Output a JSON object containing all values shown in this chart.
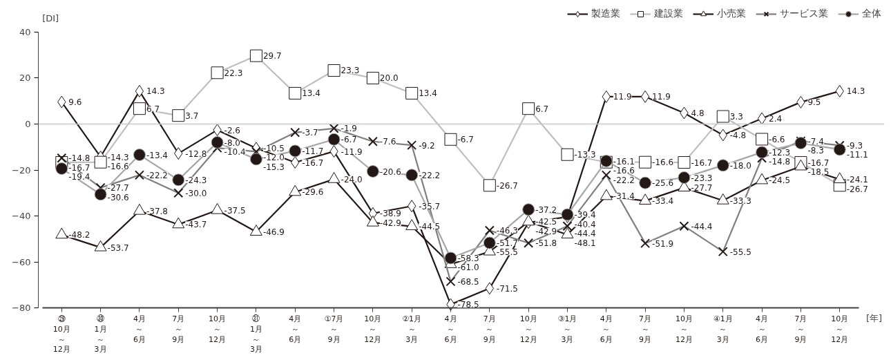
{
  "chart_data": {
    "type": "line",
    "ylabel": "[DI]",
    "xlabel": "[年]",
    "categories": [
      "㉙10月～12月",
      "㉚1月～3月",
      "4月～6月",
      "7月～9月",
      "10月～12月",
      "㉛1月～3月",
      "4月～6月",
      "①7月～9月",
      "10月～12月",
      "②1月～3月",
      "4月～6月",
      "7月～9月",
      "10月～12月",
      "③1月～3月",
      "4月～6月",
      "7月～9月",
      "10月～12月",
      "④1月～3月",
      "4月～6月",
      "7月～9月",
      "10月～12月"
    ],
    "series": [
      {
        "name": "製造業",
        "color": "#231815",
        "marker": "diamond",
        "values": [
          9.6,
          -14.3,
          14.3,
          -12.8,
          -2.6,
          -10.5,
          -16.7,
          -11.9,
          -38.9,
          -35.7,
          -78.5,
          -71.5,
          -42.9,
          -40.4,
          11.9,
          11.9,
          4.8,
          -4.8,
          2.4,
          9.5,
          14.3
        ],
        "value_labels": [
          "9.6",
          "-14.3",
          "14.3",
          "-12.8",
          "-2.6",
          "-10.5",
          "-16.7",
          "-11.9",
          "-38.9",
          "-35.7",
          "-78.5",
          "-71.5",
          "-42.9",
          "-40.4",
          "11.9",
          "11.9",
          "4.8",
          "-4.8",
          "2.4",
          "9.5",
          "14.3"
        ]
      },
      {
        "name": "建設業",
        "color": "#bfbfbf",
        "marker": "square",
        "values": [
          -16.7,
          -16.6,
          6.7,
          3.7,
          22.3,
          29.7,
          13.4,
          23.3,
          20.0,
          13.4,
          -6.7,
          -26.7,
          6.7,
          -13.3,
          -16.6,
          -16.6,
          -16.7,
          3.3,
          -6.6,
          -16.7,
          -26.7
        ],
        "value_labels": [
          "-16.7",
          "-16.6",
          "6.7",
          "3.7",
          "22.3",
          "29.7",
          "13.4",
          "23.3",
          "20.0",
          "13.4",
          "-6.7",
          "-26.7",
          "6.7",
          "-13.3",
          "-16.6",
          "-16.6",
          "-16.7",
          "3.3",
          "-6.6",
          "-16.7",
          "-26.7"
        ]
      },
      {
        "name": "小売業",
        "color": "#231815",
        "marker": "triangle",
        "values": [
          -48.2,
          -53.7,
          -37.8,
          -43.7,
          -37.5,
          -46.9,
          -29.6,
          -24.0,
          -42.9,
          -44.5,
          -61.0,
          -55.5,
          -42.5,
          -48.1,
          -31.4,
          -33.4,
          -27.7,
          -33.3,
          -24.5,
          -18.5,
          -24.1
        ],
        "value_labels": [
          "-48.2",
          "-53.7",
          "-37.8",
          "-43.7",
          "-37.5",
          "-46.9",
          "-29.6",
          "-24.0",
          "-42.9",
          "-44.5",
          "-61.0",
          "-55.5",
          "-42.5",
          "-48.1",
          "-31.4",
          "-33.4",
          "-27.7",
          "-33.3",
          "-24.5",
          "-18.5",
          "-24.1"
        ]
      },
      {
        "name": "サービス業",
        "color": "#7f7f7f",
        "marker": "cross",
        "values": [
          -14.8,
          -27.7,
          -22.2,
          -30.0,
          -10.4,
          -12.0,
          -3.7,
          -1.9,
          -7.6,
          -9.2,
          -68.5,
          -46.3,
          -51.8,
          -44.4,
          -22.2,
          -51.9,
          -44.4,
          -55.5,
          -14.8,
          -7.4,
          -9.3
        ],
        "value_labels": [
          "-14.8",
          "-27.7",
          "-22.2",
          "-30.0",
          "-10.4",
          "-12.0",
          "-3.7",
          "-1.9",
          "-7.6",
          "-9.2",
          "-68.5",
          "-46.3",
          "-51.8",
          "-44.4",
          "-22.2",
          "-51.9",
          "-44.4",
          "-55.5",
          "-14.8",
          "-7.4",
          "-9.3"
        ]
      },
      {
        "name": "全体",
        "color": "#a6a6a6",
        "marker": "circle",
        "values": [
          -19.4,
          -30.6,
          -13.4,
          -24.3,
          -8.0,
          -15.3,
          -11.7,
          -6.7,
          -20.6,
          -22.2,
          -58.3,
          -51.7,
          -37.2,
          -39.4,
          -16.1,
          -25.6,
          -23.3,
          -18.0,
          -12.3,
          -8.3,
          -11.1
        ],
        "value_labels": [
          "-19.4",
          "-30.6",
          "-13.4",
          "-24.3",
          "-8.0",
          "-15.3",
          "-11.7",
          "-6.7",
          "-20.6",
          "-22.2",
          "-58.3",
          "-51.7",
          "-37.2",
          "-39.4",
          "-16.1",
          "-25.6",
          "-23.3",
          "-18.0",
          "-12.3",
          "-8.3",
          "-11.1"
        ]
      }
    ],
    "ylim": [
      -80,
      40
    ],
    "yticks": [
      -80,
      -60,
      -40,
      -20,
      0,
      20,
      40
    ],
    "ref_lines": [
      {
        "axis": "y",
        "value": 0,
        "color": "#c8c8c8"
      }
    ],
    "legend": "top right",
    "grid": false
  }
}
